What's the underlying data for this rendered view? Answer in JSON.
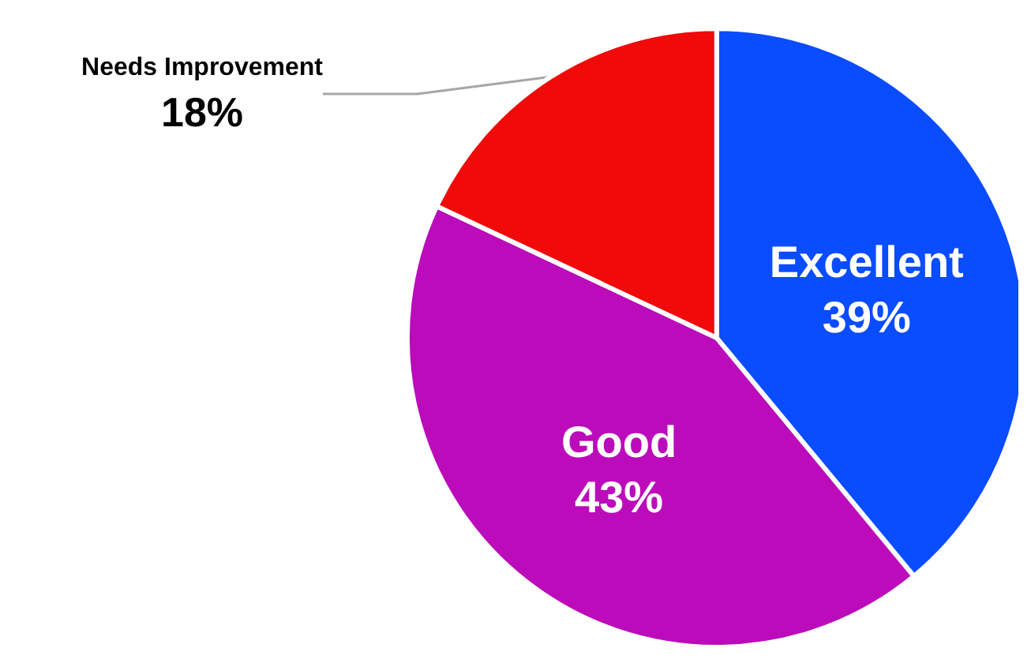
{
  "chart_data": {
    "type": "pie",
    "categories": [
      "Excellent",
      "Good",
      "Needs Improvement"
    ],
    "values": [
      39,
      43,
      18
    ],
    "colors": [
      "#0a4cff",
      "#bb0bbb",
      "#f00a0a"
    ],
    "value_labels": [
      "39%",
      "43%",
      "18%"
    ],
    "legend": false
  }
}
